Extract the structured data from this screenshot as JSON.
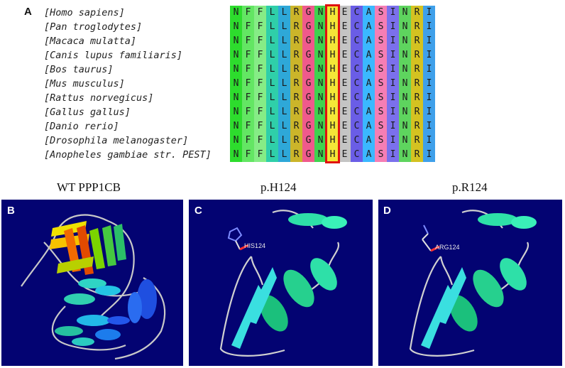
{
  "panels": {
    "a": "A",
    "b": "B",
    "c": "C",
    "d": "D"
  },
  "alignment": {
    "species": [
      "[Homo sapiens]",
      " [Pan troglodytes]",
      "[Macaca mulatta]",
      "[Canis lupus familiaris]",
      " [Bos taurus]",
      "[Mus musculus]",
      " [Rattus norvegicus]",
      "[Gallus gallus]",
      "[Danio rerio]",
      "[Drosophila melanogaster]",
      " [Anopheles gambiae str. PEST]"
    ],
    "sequence": [
      "N",
      "F",
      "F",
      "L",
      "L",
      "R",
      "G",
      "N",
      "H",
      "E",
      "C",
      "A",
      "S",
      "I",
      "N",
      "R",
      "I"
    ],
    "column_colors": [
      "#2ddc2d",
      "#63e663",
      "#86ec86",
      "#2fcfa9",
      "#2ea8d8",
      "#cbb52a",
      "#ef5a8c",
      "#3fd34f",
      "#f4e637",
      "#c4c4c4",
      "#6a5de6",
      "#3bb8ff",
      "#f57eb4",
      "#7b70ec",
      "#5ed45e",
      "#d4c221",
      "#3fa0ea"
    ],
    "highlight_index": 8
  },
  "structures": {
    "wt_label": "WT PPP1CB",
    "mut1_label": "p.H124",
    "mut2_label": "p.R124",
    "residue_c": "HIS124",
    "residue_d": "ARG124"
  },
  "colors": {
    "panel_bg": "#030372",
    "highlight": "#e01010",
    "helix": "#2ee0a8",
    "sheet": "#3adfe0"
  }
}
